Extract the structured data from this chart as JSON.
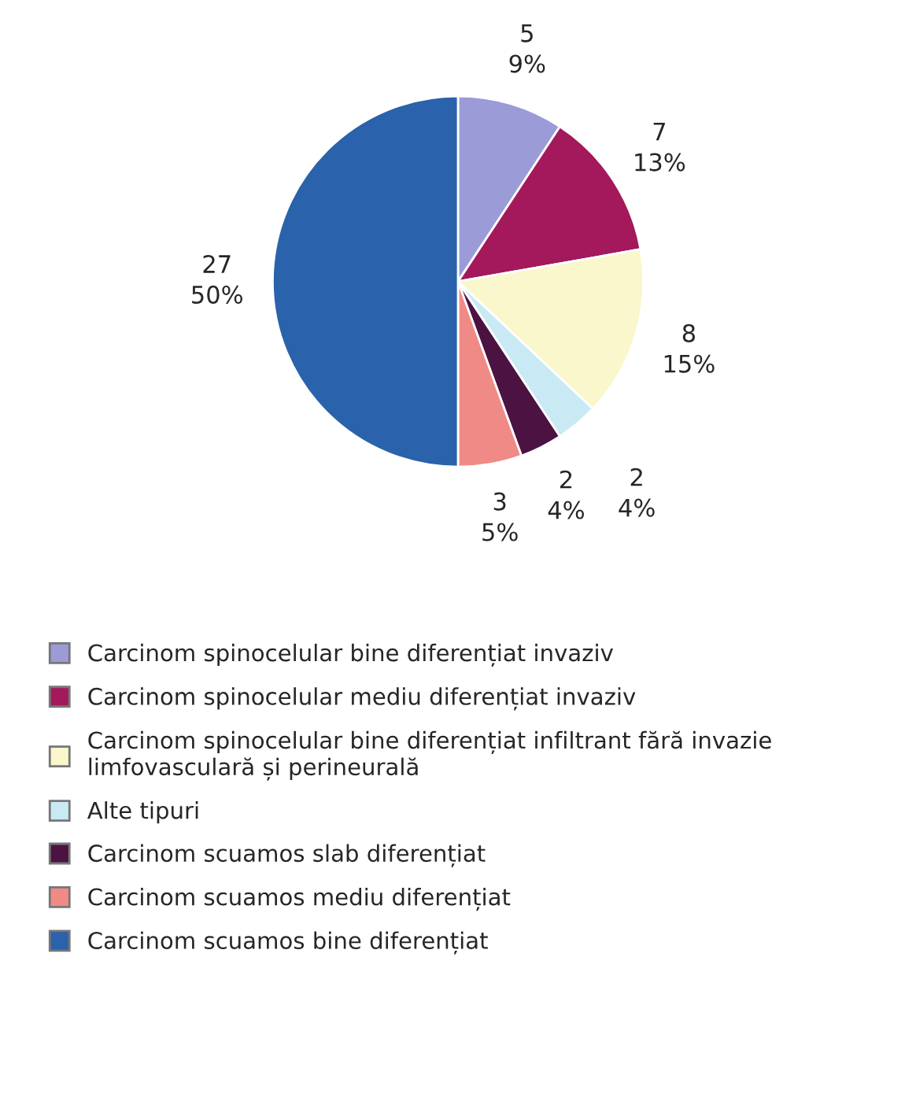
{
  "chart_data": {
    "type": "pie",
    "categories": [
      "Carcinom spinocelular bine diferențiat invaziv",
      "Carcinom spinocelular mediu diferențiat invaziv",
      "Carcinom spinocelular bine diferențiat infiltrant fără invazie\nlimfovasculară și perineurală",
      "Alte tipuri",
      "Carcinom scuamos slab diferențiat",
      "Carcinom scuamos mediu diferențiat",
      "Carcinom scuamos bine diferențiat"
    ],
    "values": [
      5,
      7,
      8,
      2,
      2,
      3,
      27
    ],
    "value_labels": [
      "5\n9%",
      "7\n13%",
      "8\n15%",
      "2\n4%",
      "2\n4%",
      "3\n5%",
      "27\n50%"
    ],
    "colors": [
      "#9b9bd8",
      "#a3195b",
      "#f9f7cb",
      "#c9eaf4",
      "#4b1242",
      "#f08a86",
      "#2a62ab"
    ],
    "legend": "bottom"
  }
}
